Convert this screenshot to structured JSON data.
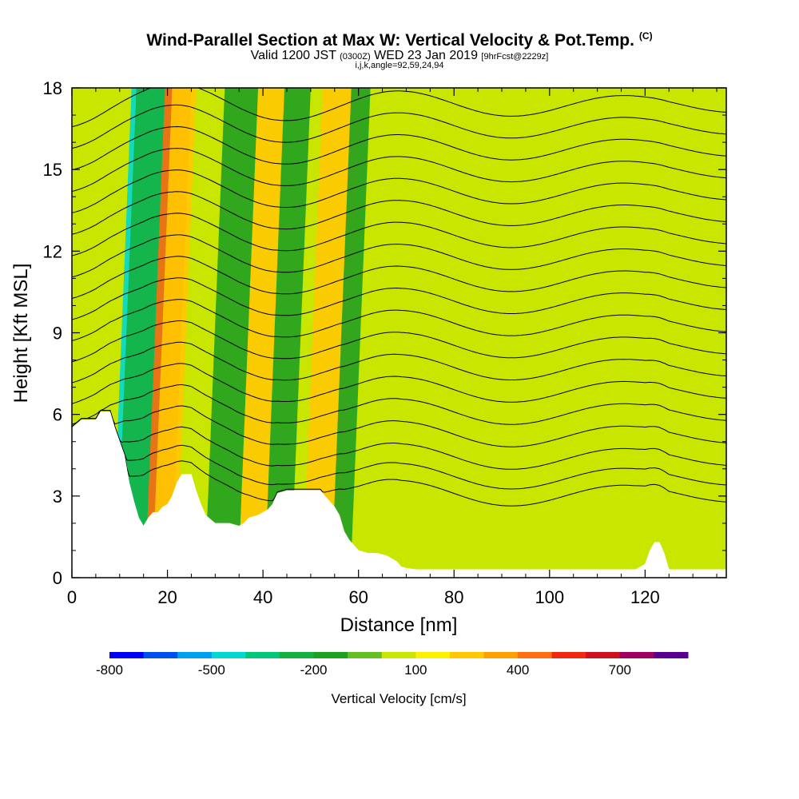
{
  "header": {
    "title": "Wind-Parallel Section at Max W: Vertical Velocity & Pot.Temp.",
    "copyright": "(C)",
    "valid_main": "Valid 1200 JST",
    "valid_utc": "(0300Z)",
    "valid_date": "WED 23 Jan 2019",
    "forecast": "[9hrFcst@2229z]",
    "indices": "i,j,k,angle=92,59,24,94"
  },
  "chart_data": {
    "type": "heatmap",
    "title": "Wind-Parallel Section at Max W: Vertical Velocity & Pot.Temp.",
    "xlabel": "Distance [nm]",
    "ylabel": "Height [Kft MSL]",
    "xlim": [
      0,
      137
    ],
    "ylim": [
      0,
      18
    ],
    "x_ticks": [
      0,
      20,
      40,
      60,
      80,
      100,
      120
    ],
    "y_ticks": [
      0,
      3,
      6,
      9,
      12,
      15,
      18
    ],
    "colorbar": {
      "label": "Vertical Velocity [cm/s]",
      "tick_labels": [
        "-800",
        "-500",
        "-200",
        "100",
        "400",
        "700"
      ],
      "tick_values": [
        -800,
        -500,
        -200,
        100,
        400,
        700
      ],
      "levels": [
        -800,
        -700,
        -600,
        -500,
        -400,
        -300,
        -200,
        -100,
        0,
        100,
        200,
        300,
        400,
        500,
        600,
        700,
        800
      ],
      "colors": [
        "#0000f5",
        "#0050f0",
        "#00a0f0",
        "#00d8d0",
        "#00c878",
        "#14b040",
        "#20a020",
        "#64c020",
        "#c8e600",
        "#fff000",
        "#ffc800",
        "#ffa000",
        "#ff6e10",
        "#f02810",
        "#d01020",
        "#a00060",
        "#5a0090"
      ]
    },
    "terrain_kft": [
      [
        0,
        5.5
      ],
      [
        2,
        5.8
      ],
      [
        5,
        5.8
      ],
      [
        6,
        6.1
      ],
      [
        8,
        6.1
      ],
      [
        9,
        5.5
      ],
      [
        10,
        5
      ],
      [
        11,
        4.5
      ],
      [
        12,
        3.5
      ],
      [
        13,
        2.8
      ],
      [
        14,
        2.2
      ],
      [
        15,
        1.9
      ],
      [
        16,
        2.2
      ],
      [
        17,
        2.4
      ],
      [
        18,
        2.4
      ],
      [
        19,
        2.6
      ],
      [
        20,
        2.7
      ],
      [
        21,
        3.0
      ],
      [
        22,
        3.5
      ],
      [
        23,
        3.8
      ],
      [
        25,
        3.8
      ],
      [
        26,
        3.2
      ],
      [
        27,
        2.7
      ],
      [
        28,
        2.3
      ],
      [
        30,
        2
      ],
      [
        33,
        2
      ],
      [
        35,
        1.9
      ],
      [
        36,
        2.0
      ],
      [
        37,
        2.2
      ],
      [
        39,
        2.3
      ],
      [
        40,
        2.4
      ],
      [
        41,
        2.5
      ],
      [
        42,
        2.7
      ],
      [
        43,
        3.1
      ],
      [
        45,
        3.2
      ],
      [
        50,
        3.2
      ],
      [
        52,
        3.2
      ],
      [
        53,
        3.0
      ],
      [
        54,
        2.8
      ],
      [
        55,
        2.6
      ],
      [
        56,
        2.3
      ],
      [
        57,
        1.7
      ],
      [
        58,
        1.4
      ],
      [
        59,
        1.2
      ],
      [
        60,
        1.0
      ],
      [
        62,
        0.9
      ],
      [
        64,
        0.9
      ],
      [
        66,
        0.8
      ],
      [
        68,
        0.6
      ],
      [
        69,
        0.4
      ],
      [
        70,
        0.35
      ],
      [
        72,
        0.3
      ],
      [
        118,
        0.3
      ],
      [
        120,
        0.5
      ],
      [
        121,
        1.0
      ],
      [
        122,
        1.3
      ],
      [
        123,
        1.3
      ],
      [
        124,
        0.9
      ],
      [
        125,
        0.3
      ],
      [
        137,
        0.3
      ]
    ],
    "w_bands": [
      {
        "x_low": 8.0,
        "x_high": 17.0,
        "w": -500
      },
      {
        "x_low": 9.0,
        "x_high": 18.2,
        "w": -250
      },
      {
        "x_low": 15.0,
        "x_high": 20.5,
        "w": 450
      },
      {
        "x_low": 16.5,
        "x_high": 21.5,
        "w": 250
      },
      {
        "x_low": 27.5,
        "x_high": 34.5,
        "w": -200
      },
      {
        "x_low": 34.5,
        "x_high": 40.0,
        "w": 250
      },
      {
        "x_low": 40.0,
        "x_high": 45.5,
        "w": -200
      },
      {
        "x_low": 48.0,
        "x_high": 56.0,
        "w": 200
      },
      {
        "x_low": 54.0,
        "x_high": 58.0,
        "w": -150
      }
    ],
    "theta_lines": [
      {
        "base": 3.3
      },
      {
        "base": 3.9
      },
      {
        "base": 4.6
      },
      {
        "base": 5.4
      },
      {
        "base": 6.2
      },
      {
        "base": 7.0
      },
      {
        "base": 7.8
      },
      {
        "base": 8.6
      },
      {
        "base": 9.4
      },
      {
        "base": 10.2
      },
      {
        "base": 11.0
      },
      {
        "base": 11.8
      },
      {
        "base": 12.6
      },
      {
        "base": 13.4
      },
      {
        "base": 14.2
      },
      {
        "base": 15.0
      },
      {
        "base": 15.8
      },
      {
        "base": 16.6
      },
      {
        "base": 17.4
      }
    ]
  }
}
